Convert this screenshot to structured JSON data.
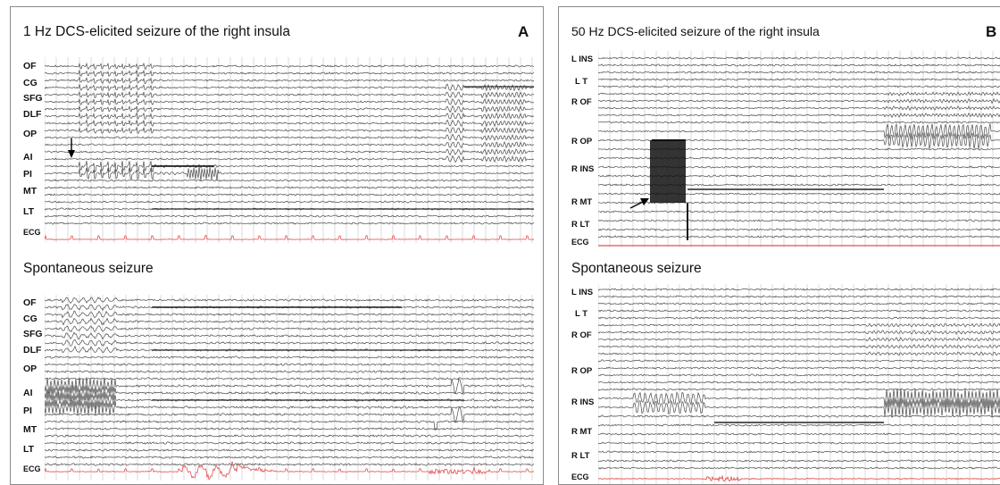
{
  "panels": [
    {
      "id": "A",
      "letter": "A",
      "stim_title": "1 Hz DCS-elicited seizure of the right insula",
      "spont_title": "Spontaneous seizure",
      "channels": [
        "OF",
        "CG",
        "SFG",
        "DLF",
        "OP",
        "AI",
        "PI",
        "MT",
        "LT",
        "ECG"
      ]
    },
    {
      "id": "B",
      "letter": "B",
      "stim_title": "50 Hz DCS-elicited seizure of the right insula",
      "spont_title": "Spontaneous seizure",
      "channels": [
        "L INS",
        "L T",
        "R OF",
        "R OP",
        "R INS",
        "R MT",
        "R LT",
        "ECG"
      ]
    }
  ],
  "colors": {
    "trace": "#4a4a4a",
    "grid": "#c4c4c4",
    "ecg": "#e0524f",
    "border": "#8a8a8a"
  }
}
